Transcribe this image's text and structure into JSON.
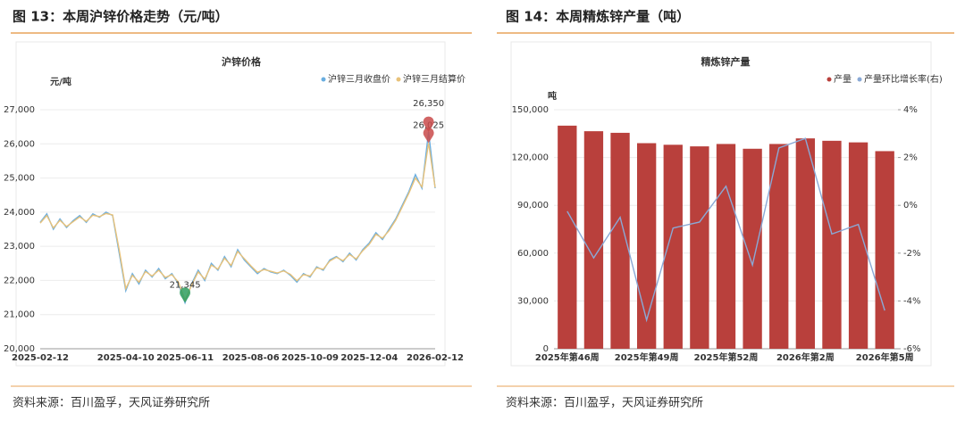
{
  "figures": [
    {
      "caption": "图 13：本周沪锌价格走势（元/吨）",
      "source": "资料来源：百川盈孚，天风证券研究所"
    },
    {
      "caption": "图 14：本周精炼锌产量（吨）",
      "source": "资料来源：百川盈孚，天风证券研究所"
    }
  ],
  "chart_data": [
    {
      "type": "line",
      "title": "沪锌价格",
      "y_unit": "元/吨",
      "categories": [
        "2025-02-12",
        null,
        null,
        null,
        null,
        null,
        null,
        null,
        null,
        null,
        null,
        null,
        null,
        "2025-04-10",
        null,
        null,
        null,
        null,
        null,
        null,
        null,
        null,
        "2025-06-11",
        null,
        null,
        null,
        null,
        null,
        null,
        null,
        null,
        null,
        "2025-08-06",
        null,
        null,
        null,
        null,
        null,
        null,
        null,
        null,
        "2025-10-09",
        null,
        null,
        null,
        null,
        null,
        null,
        null,
        null,
        "2025-12-04",
        null,
        null,
        null,
        null,
        null,
        null,
        null,
        null,
        null,
        "2026-02-12"
      ],
      "series": [
        {
          "name": "沪锌三月收盘价",
          "color": "#6aaee0",
          "values": [
            23700,
            23950,
            23500,
            23800,
            23550,
            23750,
            23900,
            23700,
            23950,
            23850,
            24000,
            23900,
            22800,
            21700,
            22200,
            21900,
            22300,
            22100,
            22350,
            22050,
            22200,
            21900,
            21345,
            21900,
            22300,
            22000,
            22500,
            22300,
            22700,
            22400,
            22900,
            22600,
            22400,
            22200,
            22350,
            22250,
            22200,
            22300,
            22150,
            21950,
            22200,
            22100,
            22400,
            22300,
            22600,
            22700,
            22550,
            22800,
            22600,
            22900,
            23100,
            23400,
            23200,
            23500,
            23800,
            24200,
            24600,
            25100,
            24700,
            26350,
            24700
          ]
        },
        {
          "name": "沪锌三月结算价",
          "color": "#e8c27a",
          "values": [
            23680,
            23900,
            23540,
            23760,
            23580,
            23720,
            23860,
            23730,
            23910,
            23870,
            23960,
            23920,
            22900,
            21760,
            22150,
            21950,
            22260,
            22130,
            22300,
            22090,
            22170,
            21950,
            21420,
            21860,
            22250,
            22040,
            22450,
            22330,
            22650,
            22440,
            22850,
            22640,
            22430,
            22240,
            22320,
            22270,
            22220,
            22280,
            22180,
            21990,
            22170,
            22130,
            22370,
            22330,
            22570,
            22680,
            22580,
            22760,
            22630,
            22870,
            23060,
            23350,
            23240,
            23460,
            23760,
            24150,
            24550,
            25000,
            24740,
            26025,
            24720
          ]
        }
      ],
      "annotations": [
        {
          "value": 26025,
          "label": "26,025",
          "color": "#c94a4a"
        },
        {
          "value": 26350,
          "label": "26,350",
          "color": "#c94a4a"
        },
        {
          "value": 21345,
          "label": "21,345",
          "color": "#2e9e5e"
        }
      ],
      "ylim": [
        20000,
        27000
      ],
      "yticks": [
        {
          "value": 20000,
          "label": "20,000"
        },
        {
          "value": 21000,
          "label": "21,000"
        },
        {
          "value": 22000,
          "label": "22,000"
        },
        {
          "value": 23000,
          "label": "23,000"
        },
        {
          "value": 24000,
          "label": "24,000"
        },
        {
          "value": 25000,
          "label": "25,000"
        },
        {
          "value": 26000,
          "label": "26,000"
        },
        {
          "value": 27000,
          "label": "27,000"
        }
      ],
      "grid": true
    },
    {
      "type": "bar",
      "title": "精炼锌产量",
      "y_unit": "吨",
      "categories": [
        "2025年第46周",
        null,
        null,
        "2025年第49周",
        null,
        null,
        "2025年第52周",
        null,
        null,
        "2026年第2周",
        null,
        null,
        "2026年第5周"
      ],
      "series": [
        {
          "name": "产量",
          "color": "#b9403c",
          "values": [
            140000,
            136500,
            135500,
            129000,
            128000,
            127000,
            128500,
            125500,
            128500,
            132000,
            130500,
            129500,
            124000
          ]
        },
        {
          "name": "产量环比增长率(右)",
          "color": "#8aa9d6",
          "axis": "y2",
          "values": [
            -0.25,
            -2.2,
            -0.5,
            -4.8,
            -0.95,
            -0.7,
            0.8,
            -2.5,
            2.4,
            2.8,
            -1.2,
            -0.8,
            -4.4
          ]
        }
      ],
      "ylim": [
        0,
        150000
      ],
      "yticks": [
        0,
        {
          "value": 30000,
          "label": "30,000"
        },
        {
          "value": 60000,
          "label": "60,000"
        },
        {
          "value": 90000,
          "label": "90,000"
        },
        {
          "value": 120000,
          "label": "120,000"
        },
        {
          "value": 150000,
          "label": "150,000"
        }
      ],
      "y2lim": [
        -6,
        4
      ],
      "y2ticks": [
        {
          "value": -6,
          "label": "-6%"
        },
        {
          "value": -4,
          "label": "-4%"
        },
        {
          "value": -2,
          "label": "-2%"
        },
        {
          "value": 0,
          "label": "0%"
        },
        {
          "value": 2,
          "label": "2%"
        },
        {
          "value": 4,
          "label": "4%"
        }
      ],
      "grid": true
    }
  ]
}
